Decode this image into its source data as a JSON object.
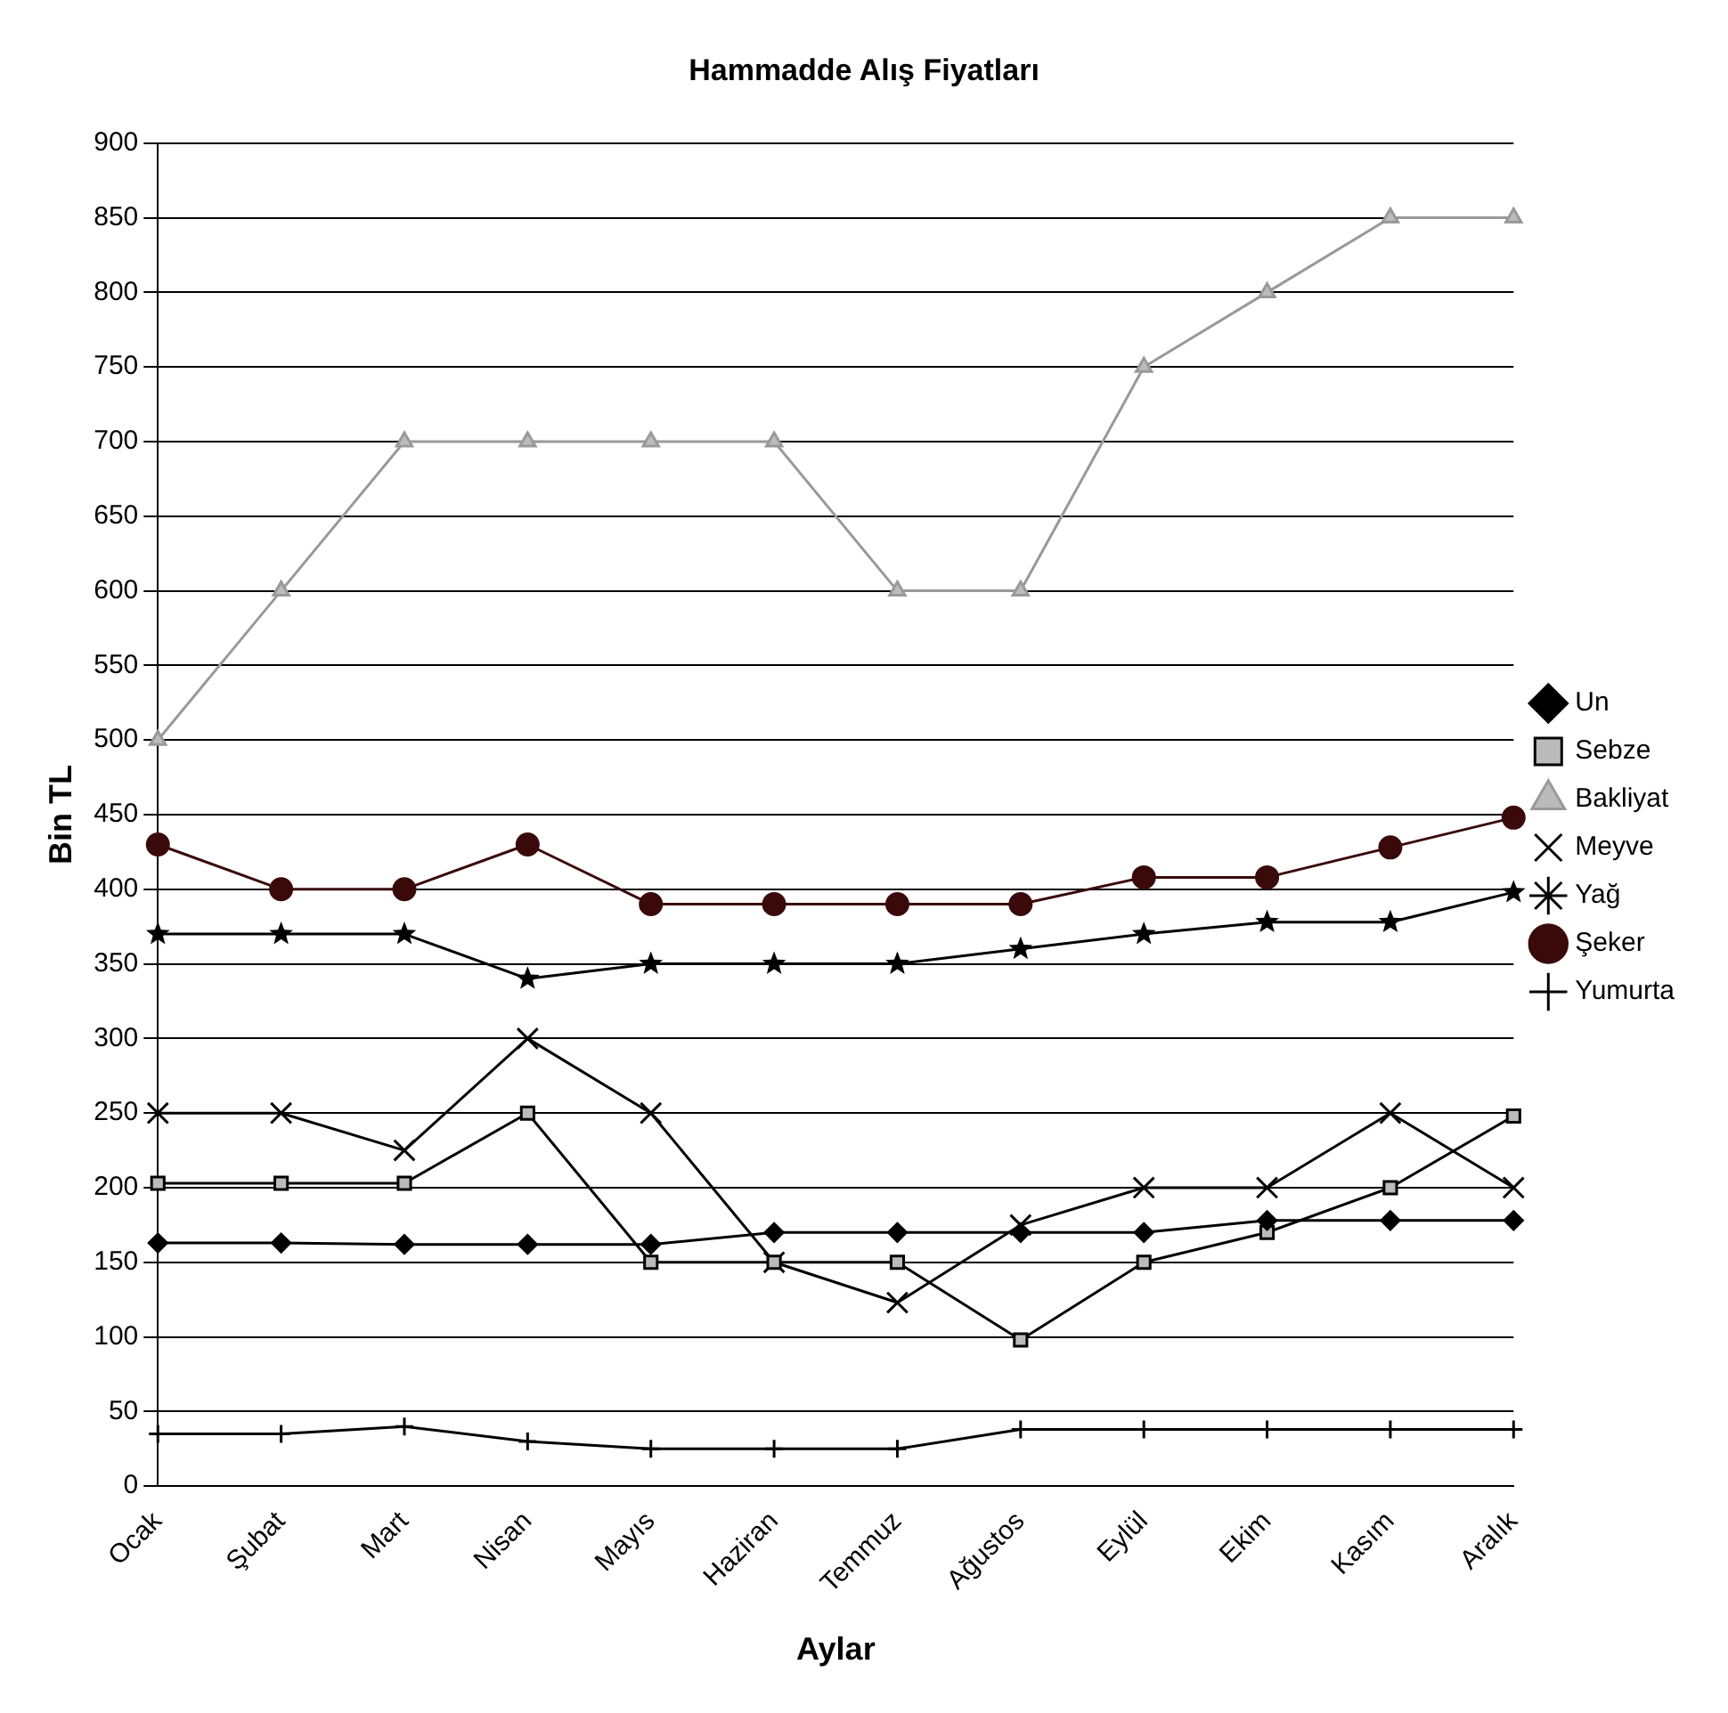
{
  "chart_data": {
    "type": "line",
    "title": "Hammadde Alış Fiyatları",
    "xlabel": "Aylar",
    "ylabel": "Bin TL",
    "categories": [
      "Ocak",
      "Şubat",
      "Mart",
      "Nisan",
      "Mayıs",
      "Haziran",
      "Temmuz",
      "Ağustos",
      "Eylül",
      "Ekim",
      "Kasım",
      "Aralık"
    ],
    "series": [
      {
        "name": "Un",
        "color": "#000000",
        "marker": "diamond",
        "values": [
          163,
          163,
          162,
          162,
          162,
          170,
          170,
          170,
          170,
          178,
          178,
          178
        ]
      },
      {
        "name": "Sebze",
        "color": "#000000",
        "marker": "square",
        "values": [
          203,
          203,
          203,
          250,
          150,
          150,
          150,
          98,
          150,
          170,
          200,
          248
        ]
      },
      {
        "name": "Bakliyat",
        "color": "#999999",
        "marker": "triangle",
        "values": [
          500,
          600,
          700,
          700,
          700,
          700,
          600,
          600,
          750,
          800,
          850,
          850
        ]
      },
      {
        "name": "Meyve",
        "color": "#000000",
        "marker": "cross",
        "values": [
          250,
          250,
          225,
          300,
          250,
          150,
          123,
          175,
          200,
          200,
          250,
          200
        ]
      },
      {
        "name": "Yağ",
        "color": "#000000",
        "marker": "star",
        "values": [
          370,
          370,
          370,
          340,
          350,
          350,
          350,
          360,
          370,
          378,
          378,
          398
        ]
      },
      {
        "name": "Şeker",
        "color": "#3a0a0a",
        "marker": "circle",
        "values": [
          430,
          400,
          400,
          430,
          390,
          390,
          390,
          390,
          408,
          408,
          428,
          448
        ]
      },
      {
        "name": "Yumurta",
        "color": "#000000",
        "marker": "plus",
        "values": [
          35,
          35,
          40,
          30,
          25,
          25,
          25,
          38,
          38,
          38,
          38,
          38
        ]
      }
    ],
    "ylim": [
      0,
      900
    ],
    "yticks": [
      0,
      50,
      100,
      150,
      200,
      250,
      300,
      350,
      400,
      450,
      500,
      550,
      600,
      650,
      700,
      750,
      800,
      850,
      900
    ],
    "grid": "y",
    "legend": "right"
  }
}
